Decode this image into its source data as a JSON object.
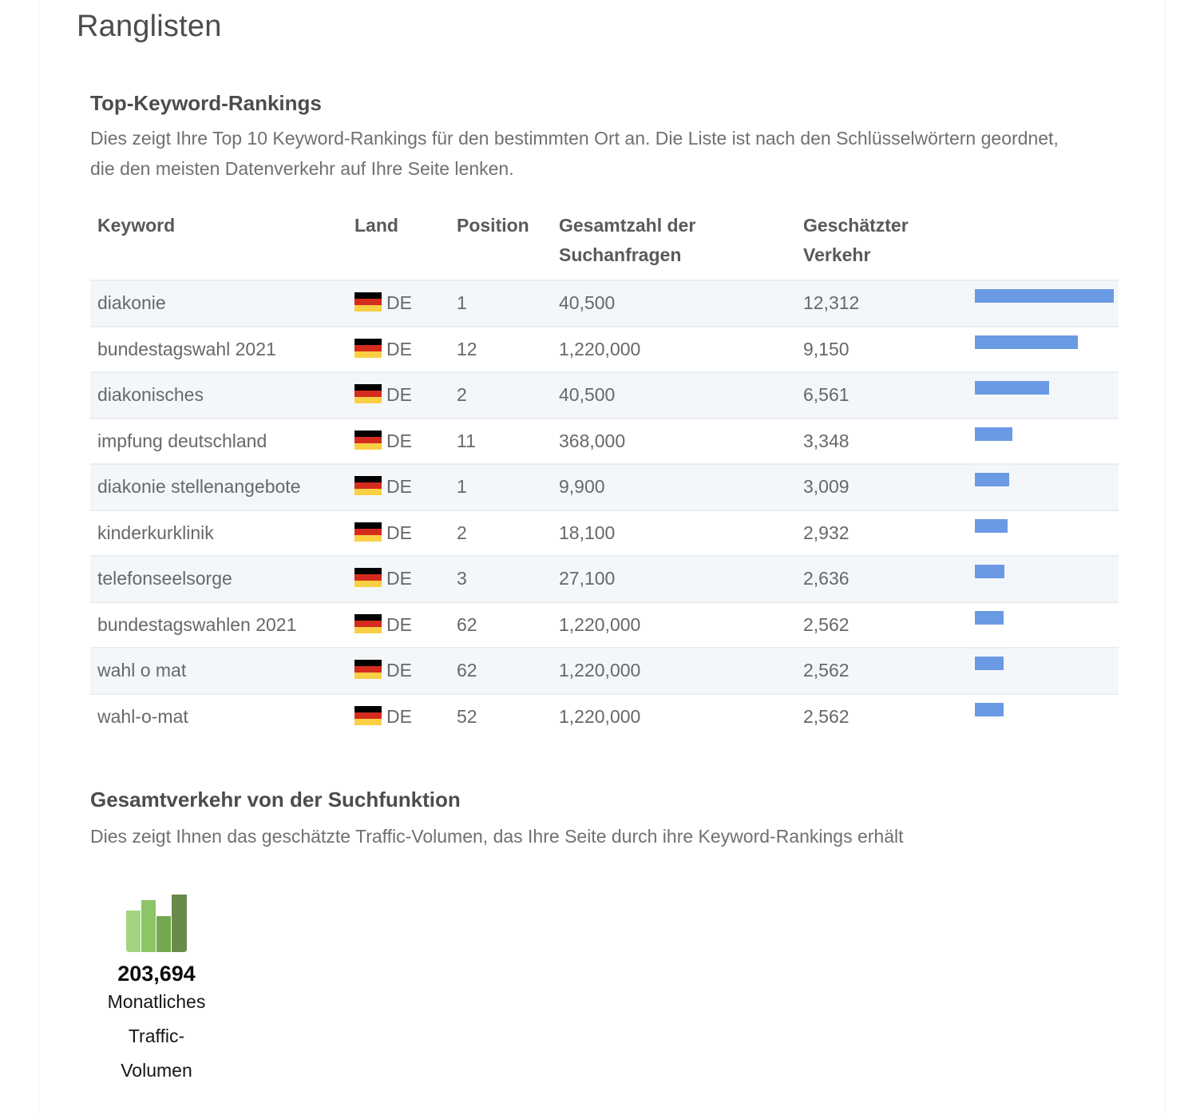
{
  "page": {
    "title": "Ranglisten"
  },
  "keyword_section": {
    "title": "Top-Keyword-Rankings",
    "description": "Dies zeigt Ihre Top 10 Keyword-Rankings für den bestimmten Ort an. Die Liste ist nach den Schlüsselwörtern geordnet, die den meisten Datenverkehr auf Ihre Seite lenken.",
    "columns": {
      "keyword": "Keyword",
      "land": "Land",
      "position": "Position",
      "searches": "Gesamtzahl der Suchanfragen",
      "traffic": "Geschätzter Verkehr"
    },
    "bar_color": "#6b9ae4",
    "flag_colors": [
      "#000000",
      "#d52b1e",
      "#f9cf44"
    ],
    "rows": [
      {
        "keyword": "diakonie",
        "country": "DE",
        "position": "1",
        "searches": "40,500",
        "traffic": "12,312",
        "traffic_value": 12312
      },
      {
        "keyword": "bundestagswahl 2021",
        "country": "DE",
        "position": "12",
        "searches": "1,220,000",
        "traffic": "9,150",
        "traffic_value": 9150
      },
      {
        "keyword": "diakonisches",
        "country": "DE",
        "position": "2",
        "searches": "40,500",
        "traffic": "6,561",
        "traffic_value": 6561
      },
      {
        "keyword": "impfung deutschland",
        "country": "DE",
        "position": "11",
        "searches": "368,000",
        "traffic": "3,348",
        "traffic_value": 3348
      },
      {
        "keyword": "diakonie stellenangebote",
        "country": "DE",
        "position": "1",
        "searches": "9,900",
        "traffic": "3,009",
        "traffic_value": 3009
      },
      {
        "keyword": "kinderkurklinik",
        "country": "DE",
        "position": "2",
        "searches": "18,100",
        "traffic": "2,932",
        "traffic_value": 2932
      },
      {
        "keyword": "telefonseelsorge",
        "country": "DE",
        "position": "3",
        "searches": "27,100",
        "traffic": "2,636",
        "traffic_value": 2636
      },
      {
        "keyword": "bundestagswahlen 2021",
        "country": "DE",
        "position": "62",
        "searches": "1,220,000",
        "traffic": "2,562",
        "traffic_value": 2562
      },
      {
        "keyword": "wahl o mat",
        "country": "DE",
        "position": "62",
        "searches": "1,220,000",
        "traffic": "2,562",
        "traffic_value": 2562
      },
      {
        "keyword": "wahl-o-mat",
        "country": "DE",
        "position": "52",
        "searches": "1,220,000",
        "traffic": "2,562",
        "traffic_value": 2562
      }
    ]
  },
  "traffic_section": {
    "title": "Gesamtverkehr von der Suchfunktion",
    "description": "Dies zeigt Ihnen das geschätzte Traffic-Volumen, das Ihre Seite durch ihre Keyword-Rankings erhält",
    "value": "203,694",
    "label": "Monatliches Traffic-Volumen",
    "icon": "bar-chart-icon",
    "icon_colors": [
      "#a3d47f",
      "#8cc466",
      "#74a84f",
      "#6a8a4a"
    ]
  }
}
